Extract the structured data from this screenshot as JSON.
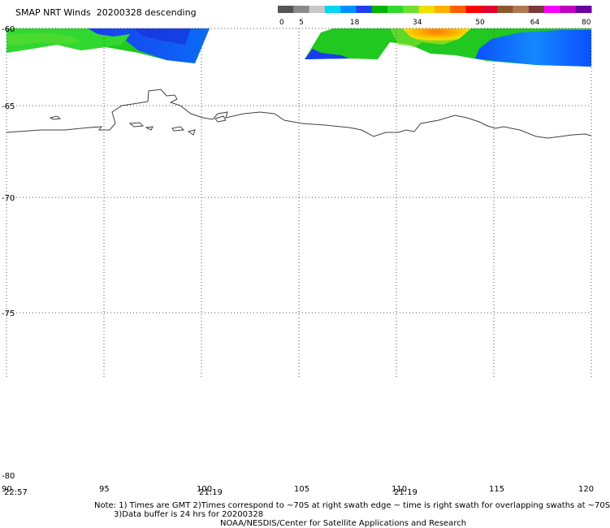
{
  "header": {
    "title": "SMAP NRT Winds",
    "date": "20200328",
    "pass": "descending"
  },
  "colorbar": {
    "ticks": [
      "0",
      "5",
      "18",
      "34",
      "50",
      "64",
      "80"
    ],
    "colors": [
      "#555555",
      "#8a8a8a",
      "#c8c8c8",
      "#00d8f0",
      "#0090ff",
      "#2040f0",
      "#00b400",
      "#30d830",
      "#70e030",
      "#f0e000",
      "#ffb000",
      "#ff6000",
      "#ff0000",
      "#e00030",
      "#8b5a2b",
      "#b07850",
      "#7a3a3a",
      "#ff00ff",
      "#c000c0",
      "#6a00a0"
    ]
  },
  "chart_data": {
    "type": "heatmap",
    "title": "SMAP NRT Winds 20200328 descending",
    "xlim": [
      90,
      120
    ],
    "ylim": [
      -80,
      -60
    ],
    "x_ticks": [
      "90",
      "95",
      "100",
      "105",
      "110",
      "115",
      "120"
    ],
    "y_ticks": [
      "-60",
      "-65",
      "-70",
      "-75",
      "-80"
    ],
    "value_scale": {
      "min": 0,
      "max": 80,
      "labels": [
        0,
        5,
        18,
        34,
        50,
        64,
        80
      ]
    },
    "swath_times": [
      {
        "label": "22:57",
        "lon": 90
      },
      {
        "label": "21:19",
        "lon": 100
      },
      {
        "label": "21:19",
        "lon": 110
      }
    ]
  },
  "notes": {
    "line1": "Note: 1) Times are GMT 2)Times correspond to ~70S at right swath edge ~ time is right swath for overlapping swaths at ~70S",
    "line2": "3)Data buffer is 24 hrs for 20200328",
    "line3": "NOAA/NESDIS/Center for Satellite Applications and Research"
  }
}
